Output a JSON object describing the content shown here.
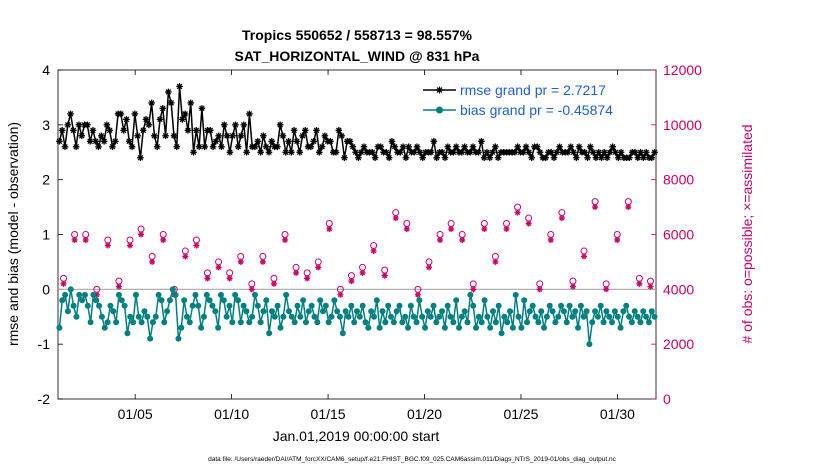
{
  "chart_data": {
    "type": "line",
    "title_line1": "Tropics 550652 / 558713 = 98.557%",
    "title_line2": "SAT_HORIZONTAL_WIND @ 831 hPa",
    "xlabel": "Jan.01,2019 00:00:00 start",
    "ylabel_left": "rmse and bias (model - observation)",
    "ylabel_right": "# of obs: o=possible; ×=assimilated",
    "x_unit": "day of January 2019",
    "xlim": [
      1,
      32
    ],
    "ylim_left": [
      -2,
      4
    ],
    "ylim_right": [
      0,
      12000
    ],
    "x_ticks": [
      5,
      10,
      15,
      20,
      25,
      30
    ],
    "x_tick_labels": [
      "01/05",
      "01/10",
      "01/15",
      "01/20",
      "01/25",
      "01/30"
    ],
    "y_ticks_left": [
      -2,
      -1,
      0,
      1,
      2,
      3,
      4
    ],
    "y_tick_labels_left": [
      "-2",
      "-1",
      "0",
      "1",
      "2",
      "3",
      "4"
    ],
    "y_ticks_right": [
      0,
      2000,
      4000,
      6000,
      8000,
      10000,
      12000
    ],
    "y_tick_labels_right": [
      "0",
      "2000",
      "4000",
      "6000",
      "8000",
      "10000",
      "12000"
    ],
    "zero_line": 0,
    "legend_position": "top-right",
    "colors": {
      "rmse": "#000000",
      "bias": "#008080",
      "obs": "#cc0066",
      "zero_line": "#aaaaaa",
      "legend_text": "#1f5fd6"
    },
    "series": [
      {
        "name": "rmse",
        "legend": "rmse grand pr = 2.7217",
        "values": [
          2.7,
          2.9,
          2.6,
          3.0,
          3.2,
          2.9,
          2.6,
          3.0,
          2.8,
          3.0,
          3.0,
          2.7,
          2.9,
          2.7,
          2.6,
          2.8,
          2.7,
          3.0,
          2.9,
          2.6,
          2.7,
          3.2,
          3.2,
          2.9,
          3.1,
          2.7,
          2.6,
          3.2,
          2.8,
          2.4,
          2.9,
          3.1,
          3.0,
          3.4,
          2.8,
          2.6,
          3.1,
          3.3,
          2.8,
          3.6,
          3.4,
          2.8,
          2.6,
          3.7,
          3.1,
          3.2,
          2.9,
          3.4,
          2.5,
          2.9,
          2.6,
          3.3,
          2.6,
          2.9,
          2.9,
          2.6,
          2.7,
          2.8,
          2.6,
          3.0,
          2.8,
          2.5,
          2.8,
          3.0,
          2.6,
          2.8,
          3.0,
          2.5,
          3.2,
          2.6,
          2.6,
          2.7,
          2.5,
          2.8,
          2.6,
          2.5,
          2.7,
          2.6,
          2.6,
          3.0,
          2.8,
          2.5,
          2.7,
          2.5,
          2.9,
          2.7,
          2.5,
          2.8,
          2.9,
          2.6,
          2.6,
          2.7,
          2.9,
          2.5,
          2.6,
          2.8,
          2.7,
          2.7,
          2.5,
          2.5,
          2.9,
          2.8,
          2.4,
          2.7,
          2.7,
          2.6,
          2.5,
          2.4,
          2.5,
          2.6,
          2.5,
          2.5,
          2.5,
          2.4,
          2.6,
          2.6,
          2.5,
          2.5,
          2.4,
          2.7,
          2.6,
          2.5,
          2.5,
          2.6,
          2.4,
          2.6,
          2.5,
          2.5,
          2.6,
          2.5,
          2.4,
          2.5,
          2.5,
          2.5,
          2.7,
          2.4,
          2.5,
          2.5,
          2.4,
          2.6,
          2.5,
          2.5,
          2.6,
          2.5,
          2.5,
          2.6,
          2.5,
          2.5,
          2.6,
          2.5,
          2.5,
          2.7,
          2.4,
          2.5,
          2.4,
          2.5,
          2.6,
          2.4,
          2.5,
          2.5,
          2.5,
          2.5,
          2.5,
          2.5,
          2.6,
          2.5,
          2.5,
          2.6,
          2.5,
          2.4,
          2.6,
          2.6,
          2.5,
          2.4,
          2.4,
          2.5,
          2.5,
          2.4,
          2.5,
          2.6,
          2.5,
          2.5,
          2.5,
          2.6,
          2.5,
          2.4,
          2.6,
          2.5,
          2.5,
          2.4,
          2.6,
          2.5,
          2.4,
          2.5,
          2.4,
          2.5,
          2.4,
          2.5,
          2.6,
          2.5,
          2.4,
          2.5,
          2.4,
          2.4,
          2.4,
          2.5,
          2.5,
          2.4,
          2.5,
          2.4,
          2.5,
          2.4,
          2.4,
          2.5
        ]
      },
      {
        "name": "bias",
        "legend": "bias grand pr = -0.45874",
        "values": [
          -0.7,
          -0.2,
          -0.1,
          -0.4,
          0.0,
          -0.3,
          -0.5,
          -0.1,
          -0.2,
          -0.1,
          -0.3,
          -0.6,
          -0.1,
          -0.2,
          -0.3,
          -0.5,
          -0.7,
          -0.6,
          -0.3,
          -0.4,
          -0.6,
          -0.1,
          -0.2,
          -0.3,
          -0.8,
          -0.5,
          -0.6,
          -0.1,
          -0.5,
          -0.6,
          -0.4,
          -0.5,
          -0.9,
          -0.6,
          -0.5,
          -0.1,
          -0.2,
          -0.6,
          -0.4,
          -0.2,
          0.0,
          -0.1,
          -0.9,
          -0.7,
          -0.2,
          -0.5,
          -0.6,
          -0.3,
          -0.1,
          -0.3,
          -0.7,
          -0.5,
          -0.1,
          -0.2,
          -0.3,
          -0.4,
          -0.7,
          -0.1,
          -0.2,
          -0.5,
          -0.3,
          -0.6,
          -0.1,
          -0.2,
          -0.6,
          -0.3,
          -0.4,
          -0.6,
          -0.5,
          -0.1,
          -0.3,
          -0.6,
          -0.4,
          -0.2,
          -0.8,
          -0.4,
          -0.5,
          -0.3,
          -0.7,
          -0.5,
          -0.1,
          -0.4,
          -0.5,
          -0.6,
          -0.3,
          -0.5,
          -0.2,
          -0.6,
          -0.4,
          -0.3,
          -0.5,
          -0.6,
          -0.2,
          -0.4,
          -0.3,
          -0.6,
          -0.5,
          -0.2,
          -0.4,
          -0.5,
          -0.8,
          -0.4,
          -0.5,
          -0.3,
          -0.6,
          -0.4,
          -0.5,
          -0.3,
          -0.6,
          -0.7,
          -0.4,
          -0.5,
          -0.2,
          -0.7,
          -0.4,
          -0.6,
          -0.3,
          -0.5,
          -0.6,
          -0.4,
          -0.3,
          -0.6,
          -0.5,
          -0.7,
          -0.3,
          -0.5,
          -0.6,
          -0.2,
          -0.5,
          -0.7,
          -0.4,
          -0.5,
          -0.3,
          -0.6,
          -0.5,
          -0.4,
          -0.7,
          -0.3,
          -0.5,
          -0.6,
          -0.2,
          -0.7,
          -0.5,
          -0.4,
          -0.6,
          -0.1,
          -0.3,
          -0.7,
          -0.5,
          -0.6,
          -0.2,
          -0.5,
          -0.7,
          -0.4,
          -0.6,
          -0.3,
          -0.8,
          -0.5,
          -0.6,
          -0.4,
          -0.7,
          -0.1,
          -0.5,
          -0.7,
          -0.2,
          -0.6,
          -0.4,
          -0.3,
          -0.5,
          -0.6,
          -0.4,
          -0.7,
          -0.5,
          -0.3,
          -0.4,
          -0.6,
          -0.5,
          -0.3,
          -0.4,
          -0.6,
          -0.3,
          -0.5,
          -0.4,
          -0.7,
          -0.3,
          -0.5,
          -0.4,
          -1.0,
          -0.6,
          -0.4,
          -0.5,
          -0.3,
          -0.6,
          -0.4,
          -0.5,
          -0.6,
          -0.4,
          -0.5,
          -0.7,
          -0.4,
          -0.3,
          -0.5,
          -0.6,
          -0.4,
          -0.5,
          -0.6,
          -0.4,
          -0.5,
          -0.6,
          -0.4,
          -0.5
        ]
      },
      {
        "name": "obs_possible",
        "marker": "circle",
        "values": [
          4400,
          6000,
          6000,
          4000,
          5800,
          4300,
          5800,
          6200,
          5200,
          6000,
          4000,
          5400,
          5800,
          4600,
          5000,
          4600,
          5200,
          4200,
          5200,
          4400,
          6000,
          4800,
          4600,
          5000,
          6400,
          4000,
          4500,
          4800,
          5600,
          4700,
          6800,
          6400,
          4000,
          5000,
          6000,
          6400,
          6000,
          4200,
          6400,
          5200,
          6400,
          7000,
          6600,
          4200,
          6000,
          6800,
          4300,
          5400,
          7200,
          4200,
          6000,
          7200,
          4400,
          4300
        ]
      },
      {
        "name": "obs_assimilated",
        "marker": "x",
        "values": [
          4200,
          5800,
          5800,
          3800,
          5600,
          4100,
          5600,
          6000,
          5000,
          5800,
          3800,
          5200,
          5600,
          4400,
          4800,
          4400,
          5000,
          4000,
          5000,
          4200,
          5800,
          4600,
          4400,
          4800,
          6200,
          3800,
          4300,
          4600,
          5400,
          4500,
          6600,
          6200,
          3800,
          4800,
          5800,
          6200,
          5800,
          4000,
          6200,
          5000,
          6200,
          6800,
          6400,
          4000,
          5800,
          6600,
          4100,
          5200,
          7000,
          4000,
          5800,
          7000,
          4200,
          4100
        ]
      }
    ],
    "footnote": "data file: /Users/raeder/DAI/ATM_forcXX/CAM6_setup/f.e21.FHIST_BGC.f09_025.CAM6assim.011/Diags_NTrS_2019-01/obs_diag_output.nc"
  }
}
